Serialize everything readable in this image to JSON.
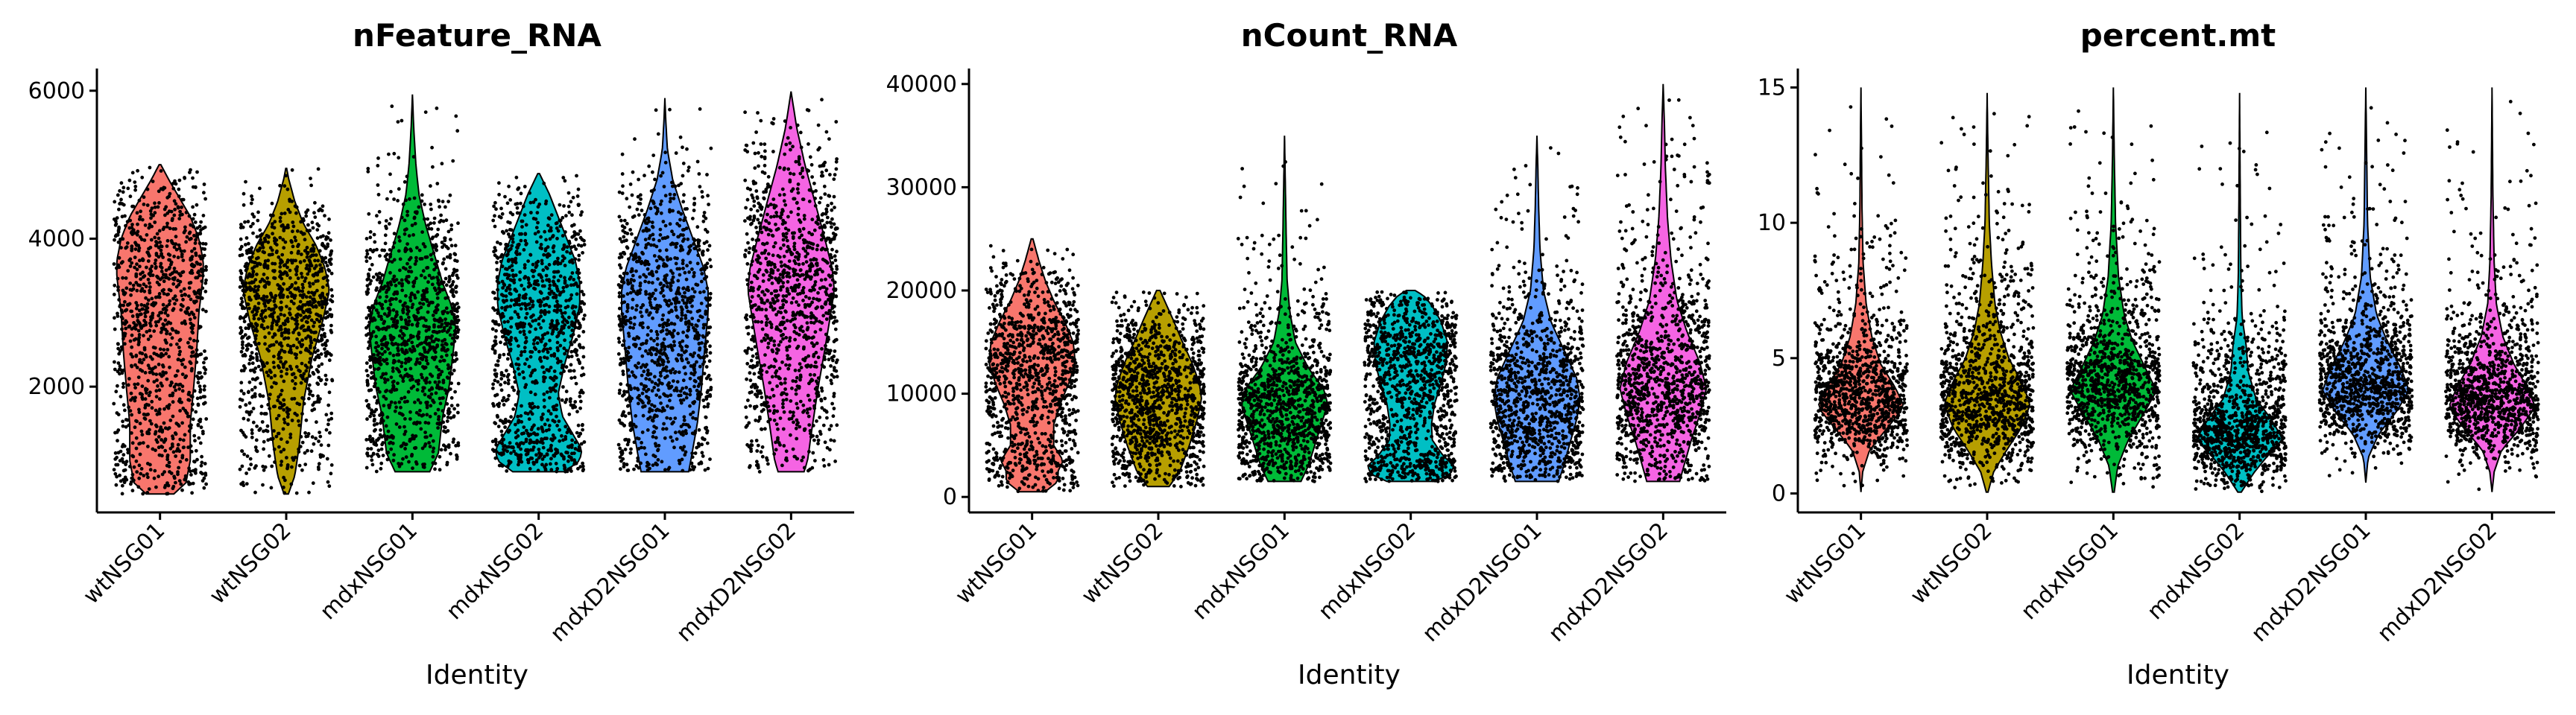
{
  "chart_data": [
    {
      "type": "violin",
      "title": "nFeature_RNA",
      "xlabel": "Identity",
      "ylabel": "",
      "categories": [
        "wtNSG01",
        "wtNSG02",
        "mdxNSG01",
        "mdxNSG02",
        "mdxD2NSG01",
        "mdxD2NSG02"
      ],
      "colors": [
        "#F8766D",
        "#B79F00",
        "#00BA38",
        "#00BFC4",
        "#619CFF",
        "#F564E3"
      ],
      "ylim": [
        300,
        6300
      ],
      "yticks": [
        2000,
        4000,
        6000
      ],
      "ytick_labels": [
        "2000",
        "4000",
        "6000"
      ],
      "series": [
        {
          "min": 550,
          "max": 5000,
          "profile": [
            [
              550,
              0.32
            ],
            [
              700,
              0.6
            ],
            [
              1000,
              0.7
            ],
            [
              1500,
              0.7
            ],
            [
              2000,
              0.78
            ],
            [
              2500,
              0.85
            ],
            [
              3000,
              0.9
            ],
            [
              3500,
              1.0
            ],
            [
              3700,
              1.0
            ],
            [
              4000,
              0.9
            ],
            [
              4300,
              0.7
            ],
            [
              4600,
              0.4
            ],
            [
              4800,
              0.2
            ],
            [
              5000,
              0.02
            ]
          ]
        },
        {
          "min": 550,
          "max": 4950,
          "profile": [
            [
              550,
              0.05
            ],
            [
              800,
              0.2
            ],
            [
              1200,
              0.3
            ],
            [
              1800,
              0.4
            ],
            [
              2400,
              0.6
            ],
            [
              2900,
              0.85
            ],
            [
              3300,
              1.0
            ],
            [
              3600,
              0.9
            ],
            [
              3900,
              0.7
            ],
            [
              4200,
              0.4
            ],
            [
              4500,
              0.2
            ],
            [
              4800,
              0.06
            ],
            [
              4950,
              0.01
            ]
          ]
        },
        {
          "min": 850,
          "max": 5950,
          "profile": [
            [
              850,
              0.4
            ],
            [
              1100,
              0.6
            ],
            [
              1600,
              0.7
            ],
            [
              2000,
              0.85
            ],
            [
              2500,
              0.95
            ],
            [
              2800,
              1.0
            ],
            [
              3100,
              0.9
            ],
            [
              3400,
              0.7
            ],
            [
              3800,
              0.5
            ],
            [
              4200,
              0.3
            ],
            [
              4600,
              0.15
            ],
            [
              5000,
              0.08
            ],
            [
              5500,
              0.03
            ],
            [
              5950,
              0.0
            ]
          ]
        },
        {
          "min": 850,
          "max": 4880,
          "profile": [
            [
              850,
              0.6
            ],
            [
              1000,
              0.95
            ],
            [
              1150,
              1.0
            ],
            [
              1350,
              0.8
            ],
            [
              1600,
              0.55
            ],
            [
              1900,
              0.45
            ],
            [
              2300,
              0.6
            ],
            [
              2700,
              0.8
            ],
            [
              3100,
              0.95
            ],
            [
              3400,
              0.95
            ],
            [
              3700,
              0.85
            ],
            [
              4000,
              0.65
            ],
            [
              4300,
              0.45
            ],
            [
              4600,
              0.25
            ],
            [
              4880,
              0.02
            ]
          ]
        },
        {
          "min": 850,
          "max": 5900,
          "profile": [
            [
              850,
              0.55
            ],
            [
              1000,
              0.6
            ],
            [
              1500,
              0.75
            ],
            [
              2000,
              0.85
            ],
            [
              2500,
              0.92
            ],
            [
              3000,
              1.0
            ],
            [
              3300,
              1.0
            ],
            [
              3600,
              0.9
            ],
            [
              4000,
              0.65
            ],
            [
              4400,
              0.4
            ],
            [
              4800,
              0.18
            ],
            [
              5200,
              0.06
            ],
            [
              5600,
              0.02
            ],
            [
              5900,
              0.0
            ]
          ]
        },
        {
          "min": 850,
          "max": 5990,
          "profile": [
            [
              850,
              0.3
            ],
            [
              1000,
              0.38
            ],
            [
              1500,
              0.5
            ],
            [
              2000,
              0.63
            ],
            [
              2500,
              0.78
            ],
            [
              3000,
              0.92
            ],
            [
              3300,
              1.0
            ],
            [
              3600,
              0.95
            ],
            [
              4000,
              0.78
            ],
            [
              4500,
              0.55
            ],
            [
              5000,
              0.32
            ],
            [
              5500,
              0.13
            ],
            [
              5800,
              0.05
            ],
            [
              5990,
              0.0
            ]
          ]
        }
      ]
    },
    {
      "type": "violin",
      "title": "nCount_RNA",
      "xlabel": "Identity",
      "ylabel": "",
      "categories": [
        "wtNSG01",
        "wtNSG02",
        "mdxNSG01",
        "mdxNSG02",
        "mdxD2NSG01",
        "mdxD2NSG02"
      ],
      "colors": [
        "#F8766D",
        "#B79F00",
        "#00BA38",
        "#00BFC4",
        "#619CFF",
        "#F564E3"
      ],
      "ylim": [
        -1500,
        41500
      ],
      "yticks": [
        0,
        10000,
        20000,
        30000,
        40000
      ],
      "ytick_labels": [
        "0",
        "10000",
        "20000",
        "30000",
        "40000"
      ],
      "series": [
        {
          "min": 500,
          "max": 25000,
          "profile": [
            [
              500,
              0.3
            ],
            [
              1500,
              0.6
            ],
            [
              2500,
              0.6
            ],
            [
              3500,
              0.72
            ],
            [
              5000,
              0.5
            ],
            [
              7000,
              0.5
            ],
            [
              9000,
              0.65
            ],
            [
              11000,
              0.85
            ],
            [
              13000,
              1.0
            ],
            [
              15000,
              0.95
            ],
            [
              17000,
              0.75
            ],
            [
              19000,
              0.5
            ],
            [
              21000,
              0.3
            ],
            [
              23000,
              0.15
            ],
            [
              25000,
              0.02
            ]
          ]
        },
        {
          "min": 1000,
          "max": 20000,
          "profile": [
            [
              1000,
              0.25
            ],
            [
              2500,
              0.5
            ],
            [
              5000,
              0.72
            ],
            [
              7500,
              0.9
            ],
            [
              9500,
              1.0
            ],
            [
              11000,
              0.95
            ],
            [
              13000,
              0.78
            ],
            [
              15000,
              0.56
            ],
            [
              17000,
              0.36
            ],
            [
              18500,
              0.2
            ],
            [
              20000,
              0.04
            ]
          ]
        },
        {
          "min": 1500,
          "max": 35000,
          "profile": [
            [
              1500,
              0.38
            ],
            [
              3000,
              0.55
            ],
            [
              5000,
              0.7
            ],
            [
              7000,
              0.85
            ],
            [
              9000,
              1.0
            ],
            [
              10500,
              0.9
            ],
            [
              12500,
              0.55
            ],
            [
              15000,
              0.25
            ],
            [
              18000,
              0.12
            ],
            [
              21000,
              0.06
            ],
            [
              25000,
              0.04
            ],
            [
              30000,
              0.02
            ],
            [
              35000,
              0.0
            ]
          ]
        },
        {
          "min": 1500,
          "max": 20000,
          "profile": [
            [
              1500,
              0.55
            ],
            [
              2200,
              0.92
            ],
            [
              3000,
              1.0
            ],
            [
              4000,
              0.75
            ],
            [
              5500,
              0.5
            ],
            [
              7000,
              0.48
            ],
            [
              9000,
              0.55
            ],
            [
              11000,
              0.7
            ],
            [
              13000,
              0.82
            ],
            [
              15000,
              0.85
            ],
            [
              17000,
              0.7
            ],
            [
              18500,
              0.5
            ],
            [
              19500,
              0.3
            ],
            [
              20000,
              0.1
            ]
          ]
        },
        {
          "min": 1500,
          "max": 35000,
          "profile": [
            [
              1500,
              0.5
            ],
            [
              3000,
              0.62
            ],
            [
              5000,
              0.75
            ],
            [
              7500,
              0.92
            ],
            [
              9500,
              1.0
            ],
            [
              11500,
              0.92
            ],
            [
              14000,
              0.65
            ],
            [
              17000,
              0.32
            ],
            [
              20000,
              0.15
            ],
            [
              24000,
              0.07
            ],
            [
              28000,
              0.04
            ],
            [
              32000,
              0.02
            ],
            [
              35000,
              0.0
            ]
          ]
        },
        {
          "min": 1500,
          "max": 40000,
          "profile": [
            [
              1500,
              0.38
            ],
            [
              3000,
              0.48
            ],
            [
              5500,
              0.65
            ],
            [
              8000,
              0.85
            ],
            [
              10500,
              1.0
            ],
            [
              13000,
              0.85
            ],
            [
              16000,
              0.55
            ],
            [
              19000,
              0.32
            ],
            [
              23000,
              0.18
            ],
            [
              27000,
              0.1
            ],
            [
              32000,
              0.05
            ],
            [
              36000,
              0.03
            ],
            [
              40000,
              0.0
            ]
          ]
        }
      ]
    },
    {
      "type": "violin",
      "title": "percent.mt",
      "xlabel": "Identity",
      "ylabel": "",
      "categories": [
        "wtNSG01",
        "wtNSG02",
        "mdxNSG01",
        "mdxNSG02",
        "mdxD2NSG01",
        "mdxD2NSG02"
      ],
      "colors": [
        "#F8766D",
        "#B79F00",
        "#00BA38",
        "#00BFC4",
        "#619CFF",
        "#F564E3"
      ],
      "ylim": [
        -0.7,
        15.7
      ],
      "yticks": [
        0,
        5,
        10,
        15
      ],
      "ytick_labels": [
        "0",
        "5",
        "10",
        "15"
      ],
      "series": [
        {
          "min": 0.05,
          "max": 15.0,
          "profile": [
            [
              0.05,
              0.0
            ],
            [
              0.8,
              0.04
            ],
            [
              1.6,
              0.2
            ],
            [
              2.4,
              0.6
            ],
            [
              3.2,
              1.0
            ],
            [
              3.9,
              0.8
            ],
            [
              4.8,
              0.45
            ],
            [
              5.8,
              0.25
            ],
            [
              7.0,
              0.12
            ],
            [
              8.5,
              0.05
            ],
            [
              10.5,
              0.025
            ],
            [
              13,
              0.012
            ],
            [
              15,
              0.0
            ]
          ]
        },
        {
          "min": 0.05,
          "max": 14.8,
          "profile": [
            [
              0.05,
              0.02
            ],
            [
              0.8,
              0.15
            ],
            [
              1.6,
              0.45
            ],
            [
              2.4,
              0.78
            ],
            [
              3.3,
              1.0
            ],
            [
              4.1,
              0.8
            ],
            [
              5.0,
              0.5
            ],
            [
              6.0,
              0.3
            ],
            [
              7.0,
              0.18
            ],
            [
              8.5,
              0.1
            ],
            [
              10,
              0.05
            ],
            [
              12.5,
              0.02
            ],
            [
              14.8,
              0.0
            ]
          ]
        },
        {
          "min": 0.05,
          "max": 15.0,
          "profile": [
            [
              0.05,
              0.02
            ],
            [
              1.0,
              0.1
            ],
            [
              2.0,
              0.35
            ],
            [
              3.0,
              0.72
            ],
            [
              3.8,
              1.0
            ],
            [
              4.6,
              0.75
            ],
            [
              5.6,
              0.45
            ],
            [
              6.6,
              0.25
            ],
            [
              8.0,
              0.12
            ],
            [
              10,
              0.05
            ],
            [
              12.5,
              0.02
            ],
            [
              15,
              0.0
            ]
          ]
        },
        {
          "min": 0.05,
          "max": 14.8,
          "profile": [
            [
              0.05,
              0.04
            ],
            [
              0.7,
              0.3
            ],
            [
              1.3,
              0.6
            ],
            [
              2.0,
              1.0
            ],
            [
              2.7,
              0.75
            ],
            [
              3.5,
              0.38
            ],
            [
              4.5,
              0.2
            ],
            [
              5.5,
              0.15
            ],
            [
              6.5,
              0.06
            ],
            [
              8,
              0.03
            ],
            [
              11,
              0.015
            ],
            [
              14.8,
              0.0
            ]
          ]
        },
        {
          "min": 0.4,
          "max": 15.0,
          "profile": [
            [
              0.4,
              0.0
            ],
            [
              1.3,
              0.05
            ],
            [
              2.2,
              0.3
            ],
            [
              3.0,
              0.7
            ],
            [
              3.8,
              1.0
            ],
            [
              4.6,
              0.82
            ],
            [
              5.6,
              0.5
            ],
            [
              6.6,
              0.25
            ],
            [
              8.0,
              0.1
            ],
            [
              10,
              0.04
            ],
            [
              12.5,
              0.02
            ],
            [
              15,
              0.0
            ]
          ]
        },
        {
          "min": 0.05,
          "max": 15.0,
          "profile": [
            [
              0.05,
              0.0
            ],
            [
              0.8,
              0.05
            ],
            [
              1.6,
              0.22
            ],
            [
              2.4,
              0.65
            ],
            [
              3.2,
              1.0
            ],
            [
              3.9,
              0.82
            ],
            [
              4.8,
              0.5
            ],
            [
              5.8,
              0.25
            ],
            [
              7.0,
              0.1
            ],
            [
              8.5,
              0.05
            ],
            [
              11,
              0.02
            ],
            [
              15,
              0.0
            ]
          ]
        }
      ]
    }
  ]
}
